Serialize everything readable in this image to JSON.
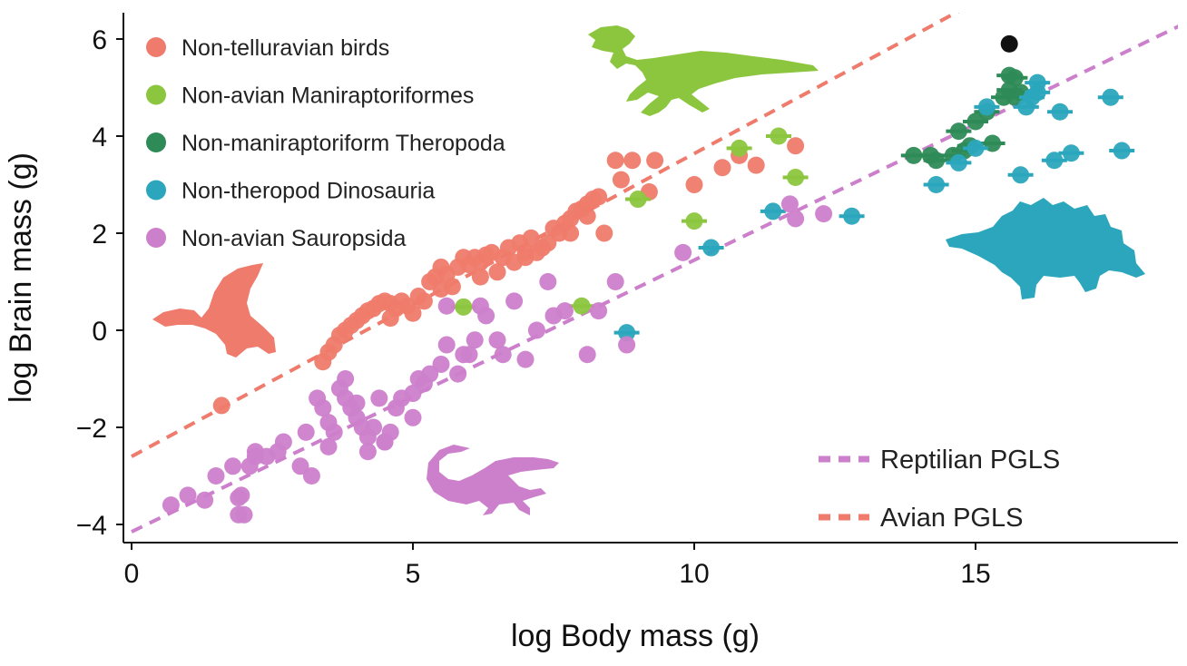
{
  "chart_data": {
    "type": "scatter",
    "xlabel": "log Body mass (g)",
    "ylabel": "log Brain mass (g)",
    "xlim": [
      0,
      18.7
    ],
    "ylim": [
      -4.1,
      6.4
    ],
    "xticks": [
      "0",
      "5",
      "10",
      "15"
    ],
    "xtick_values": [
      0,
      5,
      10,
      15
    ],
    "yticks": [
      "−4",
      "−2",
      "0",
      "2",
      "4",
      "6"
    ],
    "ytick_values": [
      -4,
      -2,
      0,
      2,
      4,
      6
    ],
    "grid": false,
    "legend_position": "top-left",
    "series": [
      {
        "name": "Non-telluravian birds",
        "color": "#ef7b6c",
        "x": [
          1.6,
          3.4,
          3.5,
          3.6,
          3.7,
          3.8,
          3.9,
          4.0,
          4.1,
          4.2,
          4.3,
          4.4,
          4.5,
          4.6,
          4.7,
          4.8,
          4.9,
          5.0,
          5.1,
          5.2,
          5.3,
          5.4,
          5.5,
          5.6,
          5.7,
          5.8,
          5.9,
          6.0,
          6.1,
          6.2,
          6.3,
          6.4,
          6.5,
          6.6,
          6.7,
          6.8,
          6.9,
          7.0,
          7.1,
          7.2,
          7.3,
          7.4,
          7.5,
          7.6,
          7.7,
          7.8,
          7.9,
          8.0,
          8.1,
          8.2,
          8.3,
          8.4,
          8.6,
          8.7,
          8.9,
          9.2,
          9.3,
          10.0,
          10.5,
          10.8,
          11.1,
          11.8,
          4.6,
          5.5,
          6.2,
          7.0,
          7.8,
          8.1
        ],
        "y": [
          -1.55,
          -0.65,
          -0.45,
          -0.3,
          -0.1,
          0.0,
          0.1,
          0.2,
          0.3,
          0.4,
          0.45,
          0.55,
          0.6,
          0.55,
          0.45,
          0.6,
          0.5,
          0.35,
          0.7,
          0.6,
          1.0,
          1.1,
          1.3,
          1.15,
          0.9,
          1.3,
          1.5,
          1.35,
          1.5,
          1.4,
          1.55,
          1.6,
          1.2,
          1.5,
          1.7,
          1.4,
          1.8,
          1.5,
          1.9,
          1.6,
          1.7,
          1.8,
          2.1,
          2.0,
          2.2,
          2.3,
          2.45,
          2.5,
          2.6,
          2.7,
          2.75,
          2.0,
          3.5,
          3.1,
          3.5,
          2.85,
          3.5,
          3.0,
          3.35,
          3.6,
          3.4,
          3.8,
          0.25,
          0.85,
          1.1,
          1.6,
          2.0,
          2.35
        ]
      },
      {
        "name": "Non-avian Maniraptoriformes",
        "color": "#8cc63f",
        "x": [
          5.9,
          8.0,
          9.0,
          10.0,
          10.8,
          11.5,
          11.8
        ],
        "y": [
          0.48,
          0.5,
          2.7,
          2.25,
          3.75,
          4.0,
          3.15
        ]
      },
      {
        "name": "Non-maniraptoriform Theropoda",
        "color": "#2e8b57",
        "x": [
          13.9,
          14.2,
          14.3,
          14.6,
          14.7,
          14.8,
          14.9,
          15.0,
          15.2,
          15.3,
          15.5,
          15.6,
          15.7,
          15.8,
          15.6,
          15.7
        ],
        "y": [
          3.6,
          3.6,
          3.5,
          3.6,
          4.1,
          3.7,
          3.8,
          4.3,
          4.5,
          3.85,
          4.8,
          5.25,
          5.2,
          4.9,
          4.95,
          4.8
        ]
      },
      {
        "name": "Non-theropod Dinosauria",
        "color": "#2ba6bd",
        "x": [
          8.8,
          10.3,
          11.4,
          12.8,
          14.3,
          14.7,
          15.0,
          15.2,
          15.8,
          15.9,
          16.0,
          16.1,
          16.1,
          16.4,
          16.5,
          16.7,
          17.4,
          17.6
        ],
        "y": [
          -0.05,
          1.7,
          2.45,
          2.35,
          3.0,
          3.45,
          3.75,
          4.6,
          3.2,
          4.6,
          4.8,
          4.9,
          5.1,
          3.5,
          4.5,
          3.65,
          4.8,
          3.7
        ]
      },
      {
        "name": "Non-avian Sauropsida",
        "color": "#cc7fcb",
        "x": [
          0.7,
          1.0,
          1.3,
          1.5,
          1.8,
          1.9,
          2.0,
          2.1,
          2.2,
          2.4,
          2.6,
          2.7,
          3.0,
          3.1,
          3.3,
          3.4,
          3.5,
          3.6,
          3.7,
          3.8,
          3.9,
          4.0,
          4.1,
          4.2,
          4.3,
          4.4,
          4.5,
          4.6,
          4.7,
          4.8,
          5.0,
          5.1,
          5.2,
          5.5,
          5.6,
          5.8,
          5.9,
          6.1,
          6.3,
          6.5,
          6.6,
          7.0,
          7.2,
          7.5,
          7.7,
          8.1,
          8.3,
          8.6,
          8.8,
          9.8,
          11.7,
          11.8,
          12.3,
          1.9,
          1.95,
          2.2,
          3.2,
          3.5,
          3.8,
          4.0,
          4.2,
          4.5,
          5.0,
          5.3,
          5.6,
          6.0,
          6.2,
          6.8,
          7.4
        ],
        "y": [
          -3.6,
          -3.4,
          -3.5,
          -3.0,
          -2.8,
          -3.45,
          -3.8,
          -2.8,
          -2.6,
          -2.6,
          -2.5,
          -2.3,
          -2.8,
          -2.1,
          -1.4,
          -1.6,
          -1.9,
          -2.1,
          -1.2,
          -1.4,
          -1.6,
          -1.8,
          -2.0,
          -2.2,
          -2.0,
          -1.4,
          -2.3,
          -2.1,
          -1.6,
          -1.4,
          -1.3,
          -1.0,
          -1.1,
          -0.7,
          -0.3,
          -0.9,
          -0.5,
          -0.2,
          0.3,
          -0.2,
          -0.5,
          -0.6,
          0.0,
          0.3,
          0.4,
          -0.5,
          0.4,
          1.0,
          -0.3,
          1.6,
          2.6,
          2.3,
          2.4,
          -3.8,
          -3.4,
          -2.5,
          -3.0,
          -2.4,
          -1.0,
          -1.5,
          -2.5,
          -2.3,
          -1.8,
          -0.9,
          0.5,
          -0.5,
          0.5,
          0.6,
          1.0
        ]
      },
      {
        "name": "",
        "color": "#111111",
        "x": [
          15.6
        ],
        "y": [
          5.9
        ]
      }
    ],
    "lines": [
      {
        "name": "Reptilian PGLS",
        "color": "#cc7fcb",
        "intercept": -4.15,
        "slope": 0.5595
      },
      {
        "name": "Avian PGLS",
        "color": "#ef7b6c",
        "intercept": -2.6,
        "slope": 0.624
      }
    ],
    "silhouettes": [
      "bird-silhouette-icon",
      "raptor-silhouette-icon",
      "stegosaur-silhouette-icon",
      "lizard-silhouette-icon"
    ]
  }
}
